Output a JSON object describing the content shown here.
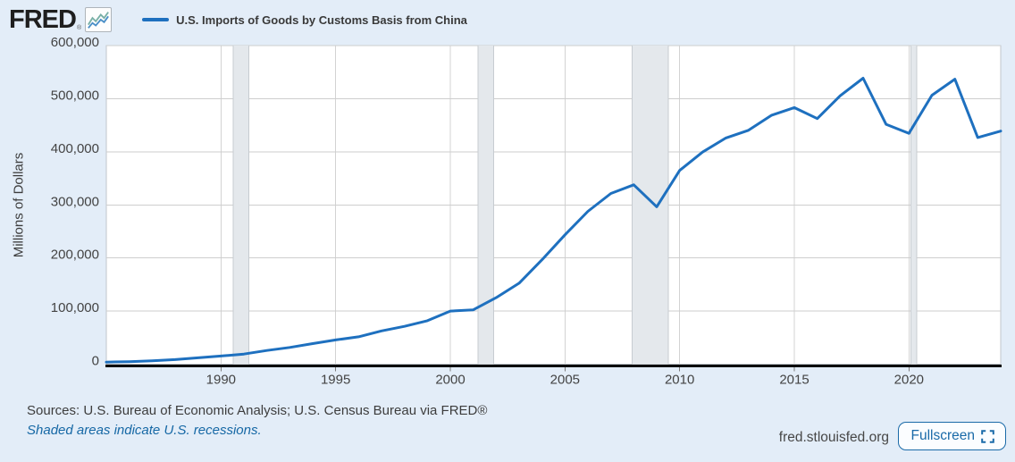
{
  "header": {
    "logo": "FRED",
    "logo_mark": "®",
    "legend": {
      "label": "U.S. Imports of Goods by Customs Basis from China",
      "color": "#1e70bf"
    }
  },
  "footer": {
    "sources": "Sources: U.S. Bureau of Economic Analysis; U.S. Census Bureau via FRED®",
    "recession_note": "Shaded areas indicate U.S. recessions.",
    "site": "fred.stlouisfed.org",
    "fullscreen_label": "Fullscreen"
  },
  "chart_data": {
    "type": "line",
    "title": "U.S. Imports of Goods by Customs Basis from China",
    "ylabel": "Millions of Dollars",
    "xlabel": "",
    "x": [
      1985,
      1986,
      1987,
      1988,
      1989,
      1990,
      1991,
      1992,
      1993,
      1994,
      1995,
      1996,
      1997,
      1998,
      1999,
      2000,
      2001,
      2002,
      2003,
      2004,
      2005,
      2006,
      2007,
      2008,
      2009,
      2010,
      2011,
      2012,
      2013,
      2014,
      2015,
      2016,
      2017,
      2018,
      2019,
      2020,
      2021,
      2022,
      2023,
      2024
    ],
    "values": [
      3862,
      4771,
      6294,
      8511,
      11990,
      15237,
      18969,
      25728,
      31540,
      38787,
      45543,
      51513,
      62558,
      71169,
      81788,
      100018,
      102278,
      125193,
      152436,
      196682,
      243470,
      287774,
      321443,
      337773,
      296374,
      364953,
      399371,
      425619,
      440430,
      468475,
      483202,
      462542,
      505470,
      538514,
      451651,
      434749,
      506367,
      536754,
      426885,
      438947
    ],
    "series_color": "#1e70bf",
    "xlim": [
      1985,
      2024
    ],
    "ylim": [
      0,
      600000
    ],
    "x_ticks": [
      1990,
      1995,
      2000,
      2005,
      2010,
      2015,
      2020
    ],
    "y_ticks": [
      0,
      100000,
      200000,
      300000,
      400000,
      500000,
      600000
    ],
    "grid": true,
    "legend_position": "top",
    "recessions": [
      [
        1990.54,
        1991.21
      ],
      [
        2001.21,
        2001.88
      ],
      [
        2007.92,
        2009.5
      ],
      [
        2020.08,
        2020.33
      ]
    ],
    "recession_fill": "#e4e8ec",
    "recession_edge": "#c7ccd1",
    "plot_bg": "#ffffff",
    "grid_color": "#cecece",
    "axis_color": "#0b0b0b"
  }
}
